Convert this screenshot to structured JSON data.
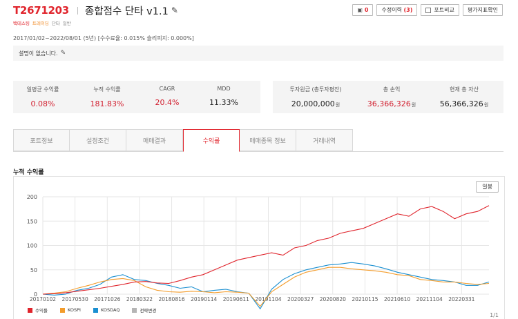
{
  "header": {
    "code": "T2671203",
    "title": "종합점수 단타 v1.1",
    "tags": [
      "백테스팅",
      "트레이딩",
      "단타",
      "일반"
    ]
  },
  "toolbar": {
    "bookmark_count": "0",
    "revision_label": "수정이력",
    "revision_count": "(3)",
    "compare_label": "포트비교",
    "evaluation_label": "평가지표확인"
  },
  "period": "2017/01/02~2022/08/01 (5년) [수수료율: 0.015% 슬리피지: 0.000%]",
  "description": "설명이 없습니다.",
  "stats_left": [
    {
      "label": "일평균 수익률",
      "value": "0.08%",
      "red": true
    },
    {
      "label": "누적 수익률",
      "value": "181.83%",
      "red": true
    },
    {
      "label": "CAGR",
      "value": "20.4%",
      "red": true
    },
    {
      "label": "MDD",
      "value": "11.33%",
      "red": false
    }
  ],
  "stats_right": [
    {
      "label": "투자원금 (총투자평잔)",
      "value": "20,000,000",
      "unit": "원",
      "red": false
    },
    {
      "label": "총 손익",
      "value": "36,366,326",
      "unit": "원",
      "red": true
    },
    {
      "label": "현재 총 자산",
      "value": "56,366,326",
      "unit": "원",
      "red": false
    }
  ],
  "tabs": [
    "포트정보",
    "설정조건",
    "매매결과",
    "수익률",
    "매매종목 정보",
    "거래내역"
  ],
  "active_tab": 3,
  "section_title": "누적 수익률",
  "daily_button": "일봉",
  "colors": {
    "returns": "#e0242c",
    "kospi": "#f39c2b",
    "kosdaq": "#1a8fd1",
    "strategy_change": "#b5b5b5"
  },
  "chart_data": {
    "type": "line",
    "ylim": [
      0,
      200
    ],
    "yticks": [
      "0",
      "50",
      "100",
      "150",
      "200"
    ],
    "ytick_values": [
      0,
      50,
      100,
      150,
      200
    ],
    "xticks": [
      "20170102",
      "20170530",
      "20171026",
      "20180322",
      "20180816",
      "20190114",
      "20190611",
      "20191104",
      "20200327",
      "20200820",
      "20210115",
      "20210610",
      "20211104",
      "20220331"
    ],
    "x_points": 40,
    "legend": [
      "수익률",
      "KOSPI",
      "KOSDAQ",
      "전략변경"
    ],
    "series": [
      {
        "name": "수익률",
        "color": "#e0242c",
        "values": [
          0,
          1,
          3,
          6,
          9,
          12,
          16,
          20,
          25,
          26,
          23,
          22,
          28,
          35,
          40,
          50,
          60,
          70,
          75,
          80,
          85,
          80,
          95,
          100,
          110,
          115,
          125,
          130,
          135,
          145,
          155,
          165,
          160,
          175,
          180,
          170,
          155,
          165,
          170,
          182
        ]
      },
      {
        "name": "KOSPI",
        "color": "#f39c2b",
        "values": [
          0,
          2,
          5,
          12,
          18,
          25,
          30,
          32,
          28,
          15,
          8,
          5,
          4,
          6,
          5,
          3,
          5,
          4,
          2,
          -25,
          5,
          20,
          35,
          45,
          50,
          55,
          55,
          52,
          50,
          48,
          45,
          40,
          38,
          30,
          28,
          25,
          25,
          22,
          20,
          22
        ]
      },
      {
        "name": "KOSDAQ",
        "color": "#1a8fd1",
        "values": [
          0,
          -2,
          0,
          8,
          12,
          20,
          35,
          40,
          30,
          28,
          22,
          18,
          12,
          15,
          5,
          8,
          10,
          5,
          2,
          -30,
          10,
          30,
          42,
          50,
          55,
          60,
          62,
          65,
          62,
          58,
          52,
          45,
          40,
          35,
          30,
          28,
          25,
          18,
          18,
          25
        ]
      }
    ]
  },
  "pager": "1/1"
}
